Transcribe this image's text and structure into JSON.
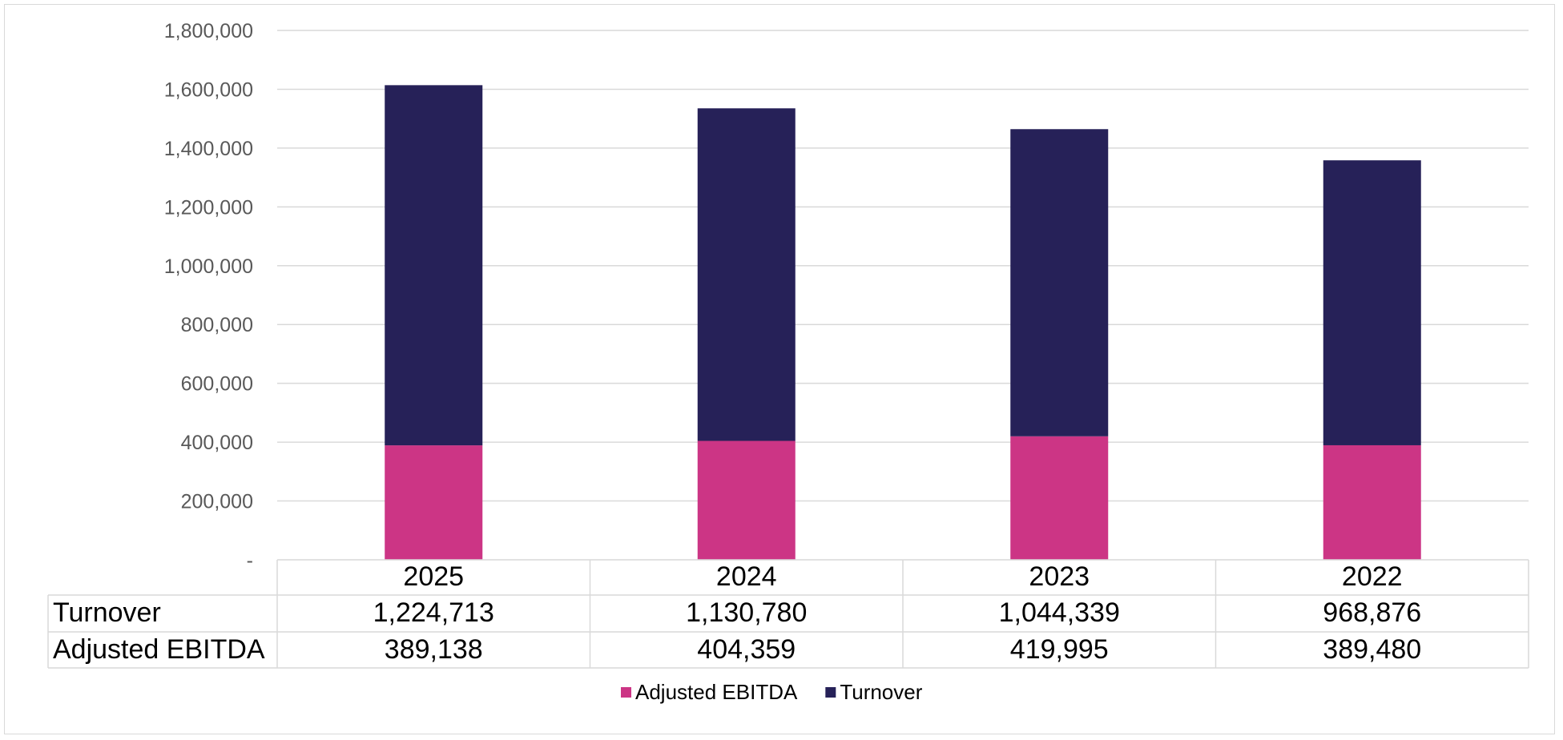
{
  "chart_data": {
    "type": "bar",
    "stacked": true,
    "title": "",
    "xlabel": "",
    "ylabel": "",
    "ylim": [
      0,
      1800000
    ],
    "yticks": [
      0,
      200000,
      400000,
      600000,
      800000,
      1000000,
      1200000,
      1400000,
      1600000,
      1800000
    ],
    "ytick_labels": [
      "-",
      "200,000",
      "400,000",
      "600,000",
      "800,000",
      "1,000,000",
      "1,200,000",
      "1,400,000",
      "1,600,000",
      "1,800,000"
    ],
    "grid": true,
    "categories": [
      "2025",
      "2024",
      "2023",
      "2022"
    ],
    "series": [
      {
        "name": "Adjusted EBITDA",
        "color": "#cc3585",
        "values": [
          389138,
          404359,
          419995,
          389480
        ],
        "labels": [
          "389,138",
          "404,359",
          "419,995",
          "389,480"
        ]
      },
      {
        "name": "Turnover",
        "color": "#262158",
        "values": [
          1224713,
          1130780,
          1044339,
          968876
        ],
        "labels": [
          "1,224,713",
          "1,130,780",
          "1,044,339",
          "968,876"
        ]
      }
    ],
    "data_table_rows": [
      "Turnover",
      "Adjusted EBITDA"
    ],
    "legend_position": "bottom"
  }
}
